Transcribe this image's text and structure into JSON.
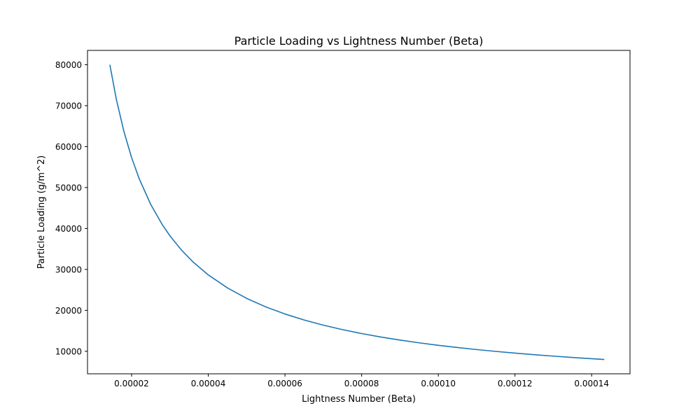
{
  "chart_data": {
    "type": "line",
    "title": "Particle Loading vs Lightness Number (Beta)",
    "xlabel": "Lightness Number (Beta)",
    "ylabel": "Particle Loading (g/m^2)",
    "xlim": [
      8.5e-06,
      0.00015
    ],
    "ylim": [
      4500,
      83500
    ],
    "xticks": [
      2e-05,
      4e-05,
      6e-05,
      8e-05,
      0.0001,
      0.00012,
      0.00014
    ],
    "xtick_labels": [
      "0.00002",
      "0.00004",
      "0.00006",
      "0.00008",
      "0.00010",
      "0.00012",
      "0.00014"
    ],
    "yticks": [
      10000,
      20000,
      30000,
      40000,
      50000,
      60000,
      70000,
      80000
    ],
    "ytick_labels": [
      "10000",
      "20000",
      "30000",
      "40000",
      "50000",
      "60000",
      "70000",
      "80000"
    ],
    "grid": false,
    "series": [
      {
        "color": "#1f77b4",
        "x": [
          1.433e-05,
          1.6e-05,
          1.8e-05,
          2e-05,
          2.2e-05,
          2.5e-05,
          2.8e-05,
          3e-05,
          3.3e-05,
          3.6e-05,
          4e-05,
          4.5e-05,
          5e-05,
          5.5e-05,
          6e-05,
          6.5e-05,
          7e-05,
          7.5e-05,
          8e-05,
          8.5e-05,
          9e-05,
          9.5e-05,
          0.0001,
          0.000105,
          0.00011,
          0.000115,
          0.00012,
          0.000125,
          0.00013,
          0.000135,
          0.00014,
          0.0001433
        ],
        "y": [
          80000,
          71650,
          63690,
          57320,
          52110,
          45860,
          40940,
          38210,
          34740,
          31840,
          28660,
          25480,
          22930,
          20840,
          19110,
          17640,
          16380,
          15290,
          14330,
          13490,
          12740,
          12070,
          11460,
          10920,
          10420,
          9970,
          9550,
          9170,
          8820,
          8490,
          8190,
          8000
        ]
      }
    ]
  }
}
